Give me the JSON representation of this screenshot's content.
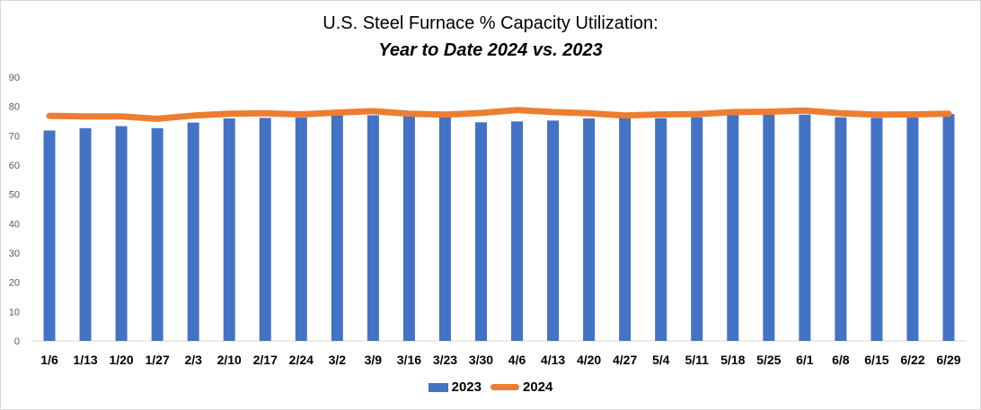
{
  "chart_data": {
    "type": "bar",
    "title": "U.S. Steel Furnace % Capacity Utilization:",
    "subtitle": "Year to Date 2024 vs. 2023",
    "xlabel": "",
    "ylabel": "",
    "ylim": [
      0,
      90
    ],
    "yticks": [
      0,
      10,
      20,
      30,
      40,
      50,
      60,
      70,
      80,
      90
    ],
    "grid": false,
    "legend_position": "bottom",
    "categories": [
      "1/6",
      "1/13",
      "1/20",
      "1/27",
      "2/3",
      "2/10",
      "2/17",
      "2/24",
      "3/2",
      "3/9",
      "3/16",
      "3/23",
      "3/30",
      "4/6",
      "4/13",
      "4/20",
      "4/27",
      "5/4",
      "5/11",
      "5/18",
      "5/25",
      "6/1",
      "6/8",
      "6/15",
      "6/22",
      "6/29"
    ],
    "series": [
      {
        "name": "2023",
        "type": "bar",
        "color": "#4472c4",
        "values": [
          71.8,
          72.6,
          73.3,
          72.6,
          74.5,
          75.9,
          76.1,
          76.2,
          78.1,
          77.0,
          76.8,
          76.6,
          74.6,
          74.9,
          75.2,
          75.9,
          76.1,
          76.0,
          76.3,
          77.1,
          77.2,
          77.2,
          76.3,
          76.1,
          76.2,
          77.4
        ]
      },
      {
        "name": "2024",
        "type": "line",
        "color": "#ed7d31",
        "values": [
          76.8,
          76.6,
          76.6,
          75.8,
          76.9,
          77.5,
          77.7,
          77.3,
          77.9,
          78.4,
          77.5,
          77.2,
          77.8,
          78.8,
          78.1,
          77.7,
          76.9,
          77.3,
          77.4,
          78.1,
          78.2,
          78.6,
          77.7,
          77.2,
          77.3,
          77.5
        ]
      }
    ]
  }
}
